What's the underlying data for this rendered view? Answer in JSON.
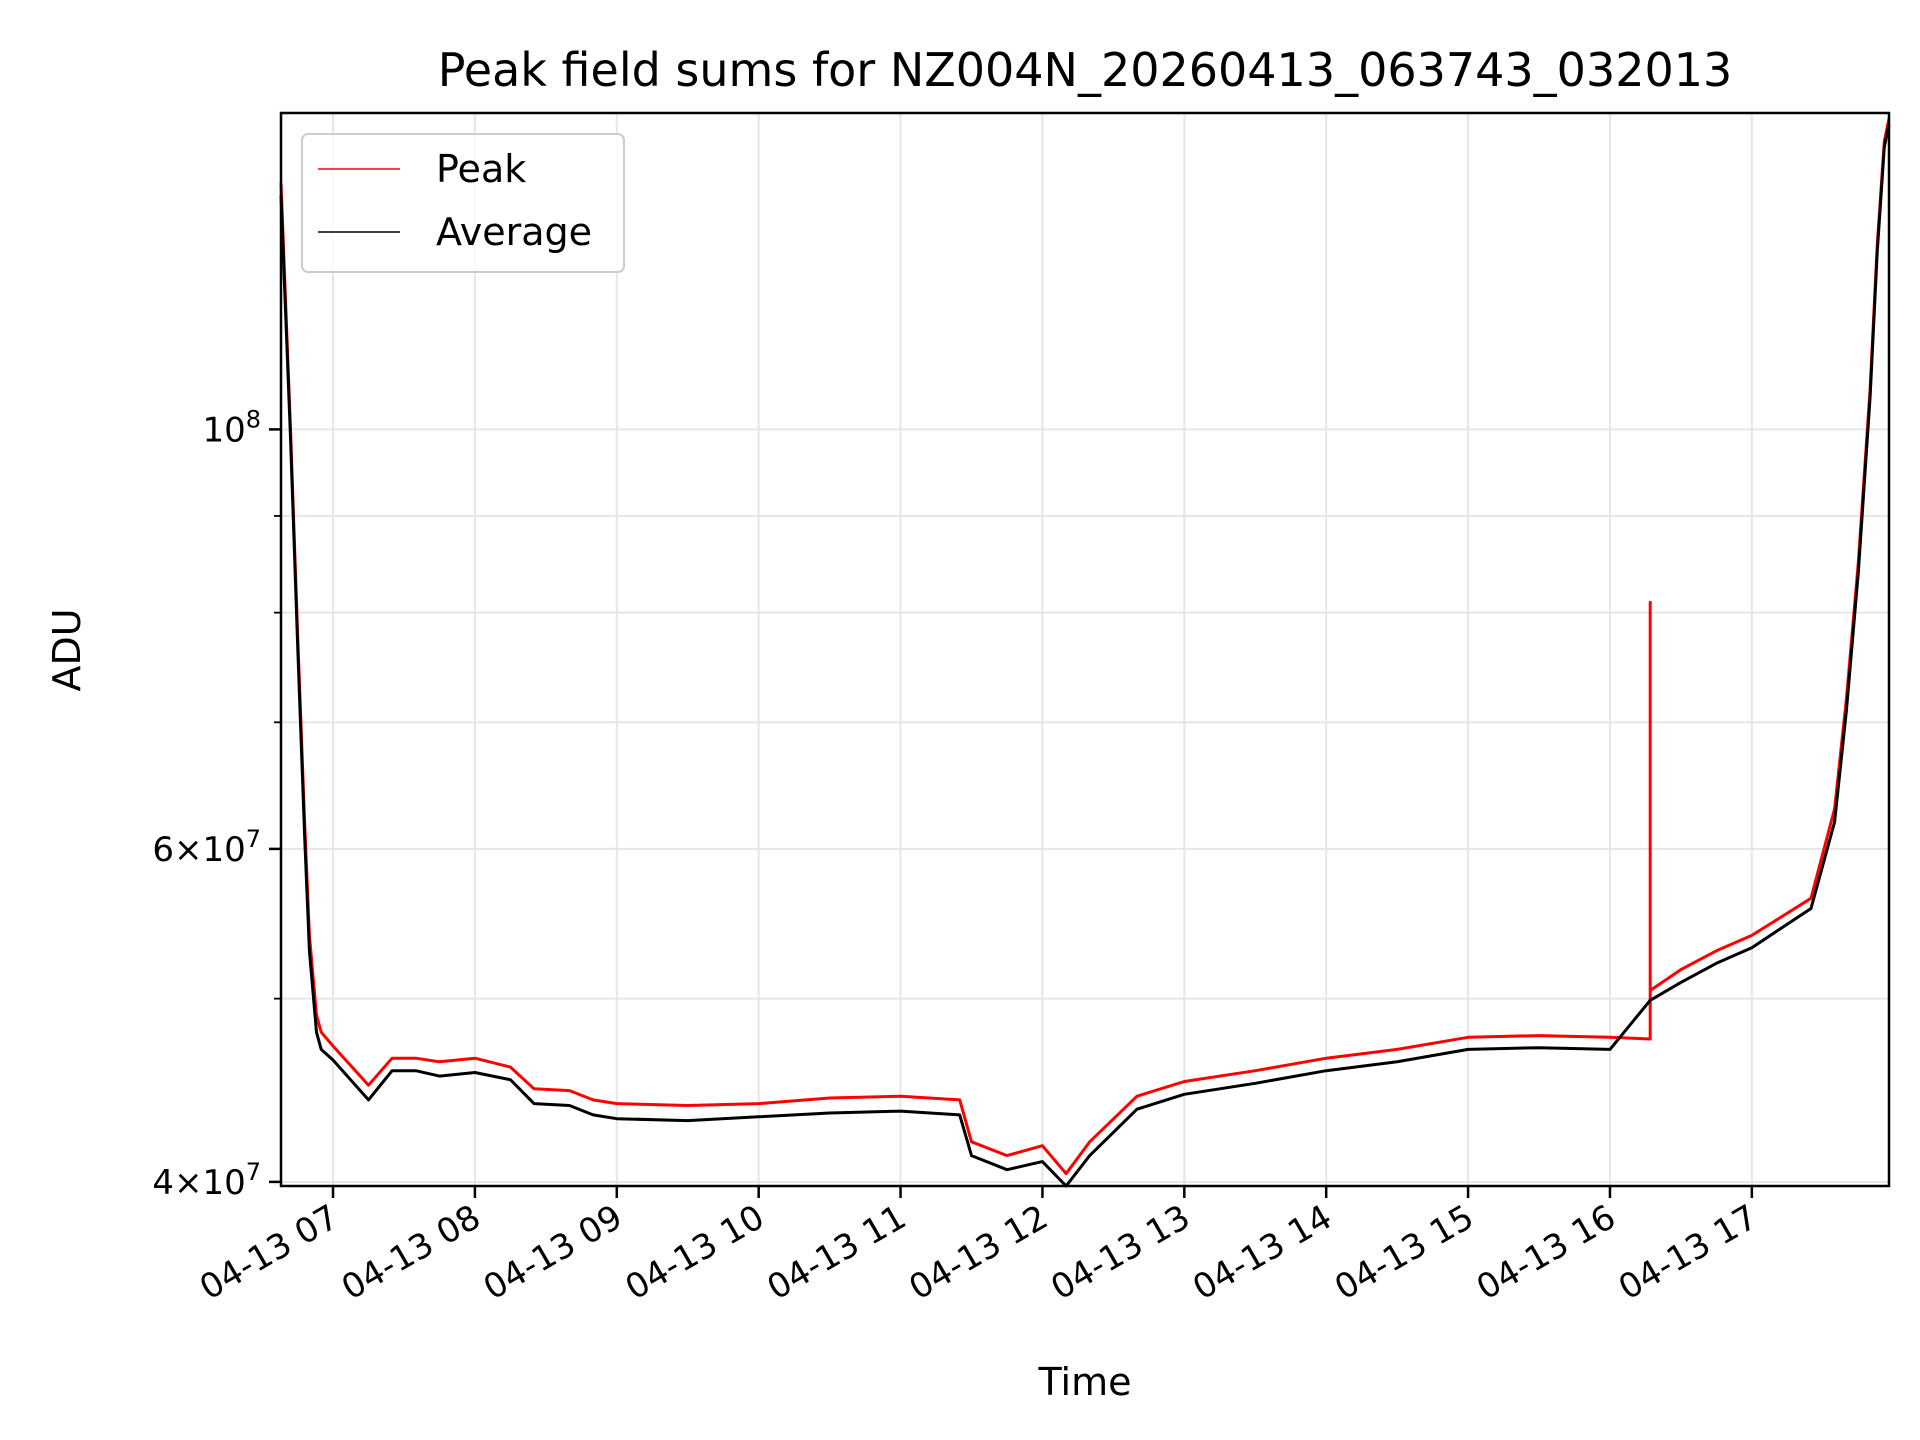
{
  "chart_data": {
    "type": "line",
    "title": "Peak field sums for NZ004N_20260413_063743_032013",
    "xlabel": "Time",
    "ylabel": "ADU",
    "y_scale": "log",
    "ylim": [
      39800000,
      147000000
    ],
    "xlim": [
      "2026-04-13 06:38",
      "2026-04-13 17:58"
    ],
    "grid": true,
    "legend_position": "top-left",
    "x_ticks": [
      "2026-04-13 07:00",
      "2026-04-13 08:00",
      "2026-04-13 09:00",
      "2026-04-13 10:00",
      "2026-04-13 11:00",
      "2026-04-13 12:00",
      "2026-04-13 13:00",
      "2026-04-13 14:00",
      "2026-04-13 15:00",
      "2026-04-13 16:00",
      "2026-04-13 17:00"
    ],
    "x_tick_labels": [
      "04-13 07",
      "04-13 08",
      "04-13 09",
      "04-13 10",
      "04-13 11",
      "04-13 12",
      "04-13 13",
      "04-13 14",
      "04-13 15",
      "04-13 16",
      "04-13 17"
    ],
    "y_major_ticks": [
      {
        "value": 40000000,
        "base": "4",
        "exp": "7"
      },
      {
        "value": 60000000,
        "base": "6",
        "exp": "7"
      },
      {
        "value": 100000000,
        "base": "",
        "exp": "8"
      }
    ],
    "y_minor_ticks": [
      50000000,
      70000000,
      80000000,
      90000000
    ],
    "series": [
      {
        "name": "Peak",
        "color": "#ff0000",
        "x": [
          "2026-04-13 06:38",
          "2026-04-13 06:42",
          "2026-04-13 06:45",
          "2026-04-13 06:48",
          "2026-04-13 06:50",
          "2026-04-13 06:53",
          "2026-04-13 06:55",
          "2026-04-13 07:00",
          "2026-04-13 07:15",
          "2026-04-13 07:25",
          "2026-04-13 07:35",
          "2026-04-13 07:45",
          "2026-04-13 08:00",
          "2026-04-13 08:15",
          "2026-04-13 08:25",
          "2026-04-13 08:40",
          "2026-04-13 08:50",
          "2026-04-13 09:00",
          "2026-04-13 09:30",
          "2026-04-13 10:00",
          "2026-04-13 10:30",
          "2026-04-13 11:00",
          "2026-04-13 11:25",
          "2026-04-13 11:30",
          "2026-04-13 11:45",
          "2026-04-13 12:00",
          "2026-04-13 12:10",
          "2026-04-13 12:20",
          "2026-04-13 12:40",
          "2026-04-13 13:00",
          "2026-04-13 13:30",
          "2026-04-13 14:00",
          "2026-04-13 14:30",
          "2026-04-13 15:00",
          "2026-04-13 15:30",
          "2026-04-13 16:00",
          "2026-04-13 16:17",
          "2026-04-13 16:17",
          "2026-04-13 16:17",
          "2026-04-13 16:30",
          "2026-04-13 16:45",
          "2026-04-13 17:00",
          "2026-04-13 17:25",
          "2026-04-13 17:35",
          "2026-04-13 17:40",
          "2026-04-13 17:45",
          "2026-04-13 17:50",
          "2026-04-13 17:53",
          "2026-04-13 17:56",
          "2026-04-13 17:58"
        ],
        "y": [
          135000000,
          100000000,
          78000000,
          62000000,
          54000000,
          49000000,
          48000000,
          47200000,
          45000000,
          46500000,
          46500000,
          46300000,
          46500000,
          46000000,
          44800000,
          44700000,
          44200000,
          44000000,
          43900000,
          44000000,
          44300000,
          44400000,
          44200000,
          42000000,
          41300000,
          41800000,
          40400000,
          42000000,
          44400000,
          45200000,
          45800000,
          46500000,
          47000000,
          47700000,
          47800000,
          47700000,
          47600000,
          81000000,
          50500000,
          51800000,
          53000000,
          54000000,
          56500000,
          63000000,
          72000000,
          85000000,
          105000000,
          125000000,
          142000000,
          146000000
        ]
      },
      {
        "name": "Average",
        "color": "#000000",
        "x": [
          "2026-04-13 06:38",
          "2026-04-13 06:42",
          "2026-04-13 06:45",
          "2026-04-13 06:48",
          "2026-04-13 06:50",
          "2026-04-13 06:53",
          "2026-04-13 06:55",
          "2026-04-13 07:00",
          "2026-04-13 07:15",
          "2026-04-13 07:25",
          "2026-04-13 07:35",
          "2026-04-13 07:45",
          "2026-04-13 08:00",
          "2026-04-13 08:15",
          "2026-04-13 08:25",
          "2026-04-13 08:40",
          "2026-04-13 08:50",
          "2026-04-13 09:00",
          "2026-04-13 09:30",
          "2026-04-13 10:00",
          "2026-04-13 10:30",
          "2026-04-13 11:00",
          "2026-04-13 11:25",
          "2026-04-13 11:30",
          "2026-04-13 11:45",
          "2026-04-13 12:00",
          "2026-04-13 12:10",
          "2026-04-13 12:20",
          "2026-04-13 12:40",
          "2026-04-13 13:00",
          "2026-04-13 13:30",
          "2026-04-13 14:00",
          "2026-04-13 14:30",
          "2026-04-13 15:00",
          "2026-04-13 15:30",
          "2026-04-13 16:00",
          "2026-04-13 16:17",
          "2026-04-13 16:30",
          "2026-04-13 16:45",
          "2026-04-13 17:00",
          "2026-04-13 17:25",
          "2026-04-13 17:35",
          "2026-04-13 17:40",
          "2026-04-13 17:45",
          "2026-04-13 17:50",
          "2026-04-13 17:53",
          "2026-04-13 17:56",
          "2026-04-13 17:58"
        ],
        "y": [
          133000000,
          99000000,
          77000000,
          61000000,
          53000000,
          48000000,
          47000000,
          46400000,
          44200000,
          45800000,
          45800000,
          45500000,
          45700000,
          45300000,
          44000000,
          43900000,
          43400000,
          43200000,
          43100000,
          43300000,
          43500000,
          43600000,
          43400000,
          41300000,
          40600000,
          41000000,
          39800000,
          41300000,
          43700000,
          44500000,
          45100000,
          45800000,
          46300000,
          47000000,
          47100000,
          47000000,
          49900000,
          51000000,
          52200000,
          53200000,
          55800000,
          62000000,
          71000000,
          84000000,
          104000000,
          124000000,
          141000000,
          145000000
        ]
      }
    ]
  }
}
